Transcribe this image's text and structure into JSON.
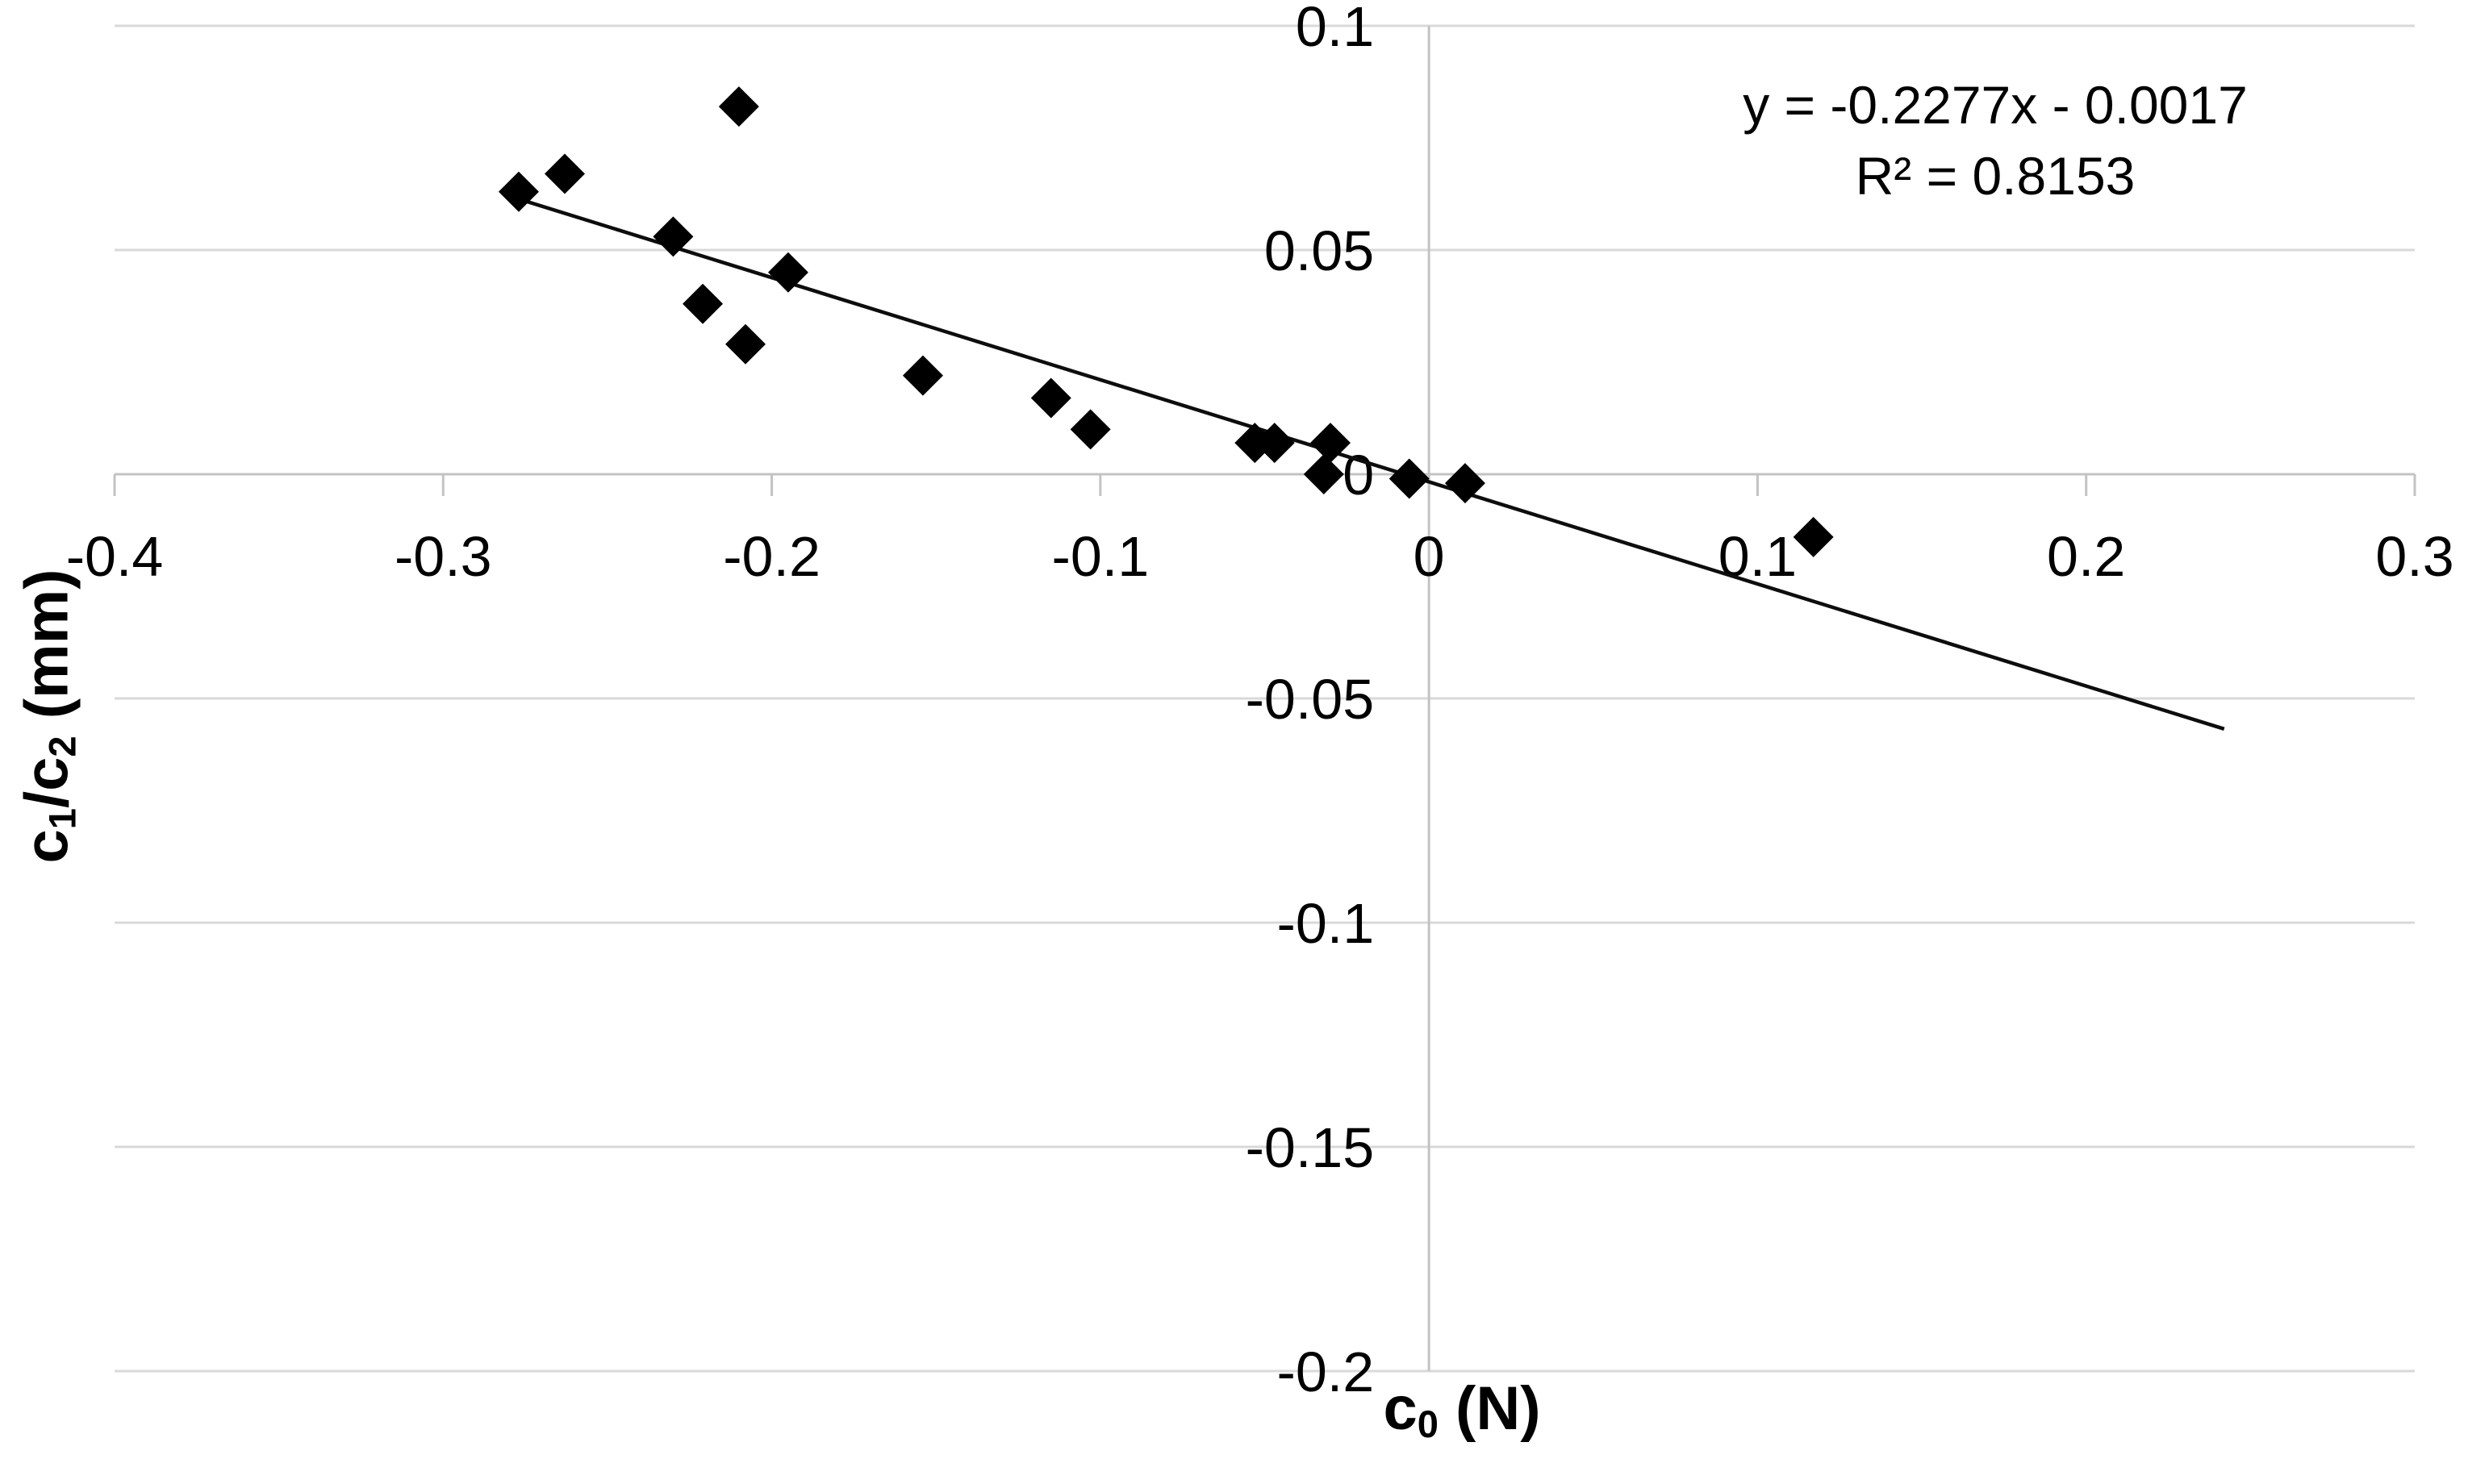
{
  "chart_data": {
    "type": "scatter",
    "title": "",
    "xlabel": "c0 (N)",
    "ylabel": "c1/c2 (mm)",
    "xlabel_rich": [
      {
        "t": "c"
      },
      {
        "t": "0",
        "sub": true
      },
      {
        "t": " (N)"
      }
    ],
    "ylabel_rich": [
      {
        "t": "c"
      },
      {
        "t": "1",
        "sub": true
      },
      {
        "t": "/c"
      },
      {
        "t": "2",
        "sub": true
      },
      {
        "t": " (mm)"
      }
    ],
    "xlim": [
      -0.4,
      0.3
    ],
    "ylim": [
      -0.2,
      0.1
    ],
    "grid": "horizontal-only",
    "x_ticks": [
      {
        "label": "-0.4",
        "value": -0.4
      },
      {
        "label": "-0.3",
        "value": -0.3
      },
      {
        "label": "-0.2",
        "value": -0.2
      },
      {
        "label": "-0.1",
        "value": -0.1
      },
      {
        "label": "0",
        "value": 0
      },
      {
        "label": "0.1",
        "value": 0.1
      },
      {
        "label": "0.2",
        "value": 0.2
      },
      {
        "label": "0.3",
        "value": 0.3
      }
    ],
    "y_ticks": [
      {
        "label": "0.1",
        "value": 0.1
      },
      {
        "label": "0.05",
        "value": 0.05
      },
      {
        "label": "0",
        "value": 0
      },
      {
        "label": "-0.05",
        "value": -0.05
      },
      {
        "label": "-0.1",
        "value": -0.1
      },
      {
        "label": "-0.15",
        "value": -0.15
      },
      {
        "label": "-0.2",
        "value": -0.2
      }
    ],
    "points": [
      {
        "x": -0.277,
        "y": 0.063
      },
      {
        "x": -0.263,
        "y": 0.067
      },
      {
        "x": -0.21,
        "y": 0.082
      },
      {
        "x": -0.23,
        "y": 0.053
      },
      {
        "x": -0.221,
        "y": 0.038
      },
      {
        "x": -0.208,
        "y": 0.029
      },
      {
        "x": -0.195,
        "y": 0.045
      },
      {
        "x": -0.154,
        "y": 0.022
      },
      {
        "x": -0.115,
        "y": 0.017
      },
      {
        "x": -0.103,
        "y": 0.01
      },
      {
        "x": -0.053,
        "y": 0.007
      },
      {
        "x": -0.047,
        "y": 0.007
      },
      {
        "x": -0.03,
        "y": 0.007
      },
      {
        "x": -0.032,
        "y": 0.0
      },
      {
        "x": -0.006,
        "y": -0.001
      },
      {
        "x": 0.011,
        "y": -0.002
      },
      {
        "x": 0.117,
        "y": -0.014
      }
    ],
    "trendline": {
      "slope": -0.2277,
      "intercept": -0.0017,
      "x_start": -0.277,
      "x_end": 0.242,
      "equation_label": "y = -0.2277x - 0.0017",
      "r_squared_label": "R² = 0.8153"
    },
    "marker": {
      "shape": "diamond",
      "color": "#000000",
      "half_size": 25
    },
    "colors": {
      "background": "#ffffff",
      "gridline": "#d9d9d9",
      "axis_line": "#c3c3c3",
      "marker": "#000000",
      "trendline": "#0d0d0d",
      "text": "#000000"
    },
    "legend": "none"
  }
}
